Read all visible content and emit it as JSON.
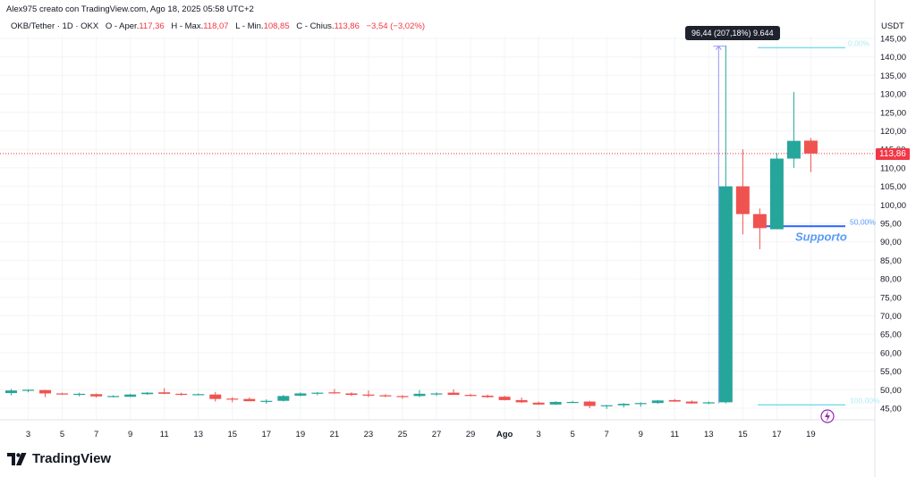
{
  "header": {
    "credit": "Alex975 creato con TradingView.com, Ago 18, 2025 05:58 UTC+2",
    "symbol": "OKB/Tether · 1D · OKX",
    "open_label": "O - Aper.",
    "open": "117,36",
    "high_label": "H - Max.",
    "high": "118,07",
    "low_label": "L - Min.",
    "low": "108,85",
    "close_label": "C - Chius.",
    "close": "113,86",
    "change": "−3,54 (−3,02%)"
  },
  "axis": {
    "currency": "USDT",
    "last_price": "113,86"
  },
  "measure_tooltip": "96,44 (207,18%) 9.644",
  "annotations": {
    "fib_top_label": "0,00%",
    "fib_mid_label": "50,00%",
    "fib_bottom_label": "100,00%",
    "support_label": "Supporto"
  },
  "branding": {
    "logo_text": "TradingView"
  },
  "colors": {
    "up": "#26a69a",
    "down": "#ef5350",
    "support": "#2962ff",
    "fib": "#80deea",
    "measure": "#9598f7"
  },
  "chart_data": {
    "type": "candlestick",
    "title": "OKB/Tether · 1D · OKX",
    "xlabel": "",
    "ylabel": "USDT",
    "ylim": [
      42,
      147
    ],
    "y_ticks": [
      "45,00",
      "50,00",
      "55,00",
      "60,00",
      "65,00",
      "70,00",
      "75,00",
      "80,00",
      "85,00",
      "90,00",
      "95,00",
      "100,00",
      "105,00",
      "110,00",
      "115,00",
      "120,00",
      "125,00",
      "130,00",
      "135,00",
      "140,00",
      "145,00"
    ],
    "x_ticks": [
      "3",
      "5",
      "7",
      "9",
      "11",
      "13",
      "15",
      "17",
      "19",
      "21",
      "23",
      "25",
      "27",
      "29",
      "Ago",
      "3",
      "5",
      "7",
      "9",
      "11",
      "13",
      "15",
      "17",
      "19"
    ],
    "grid": true,
    "candles": [
      {
        "date": "Jul 2",
        "o": 49.1,
        "h": 50.2,
        "l": 48.5,
        "c": 49.8
      },
      {
        "date": "Jul 3",
        "o": 49.7,
        "h": 50.1,
        "l": 49.3,
        "c": 50.0
      },
      {
        "date": "Jul 4",
        "o": 49.9,
        "h": 50.0,
        "l": 48.0,
        "c": 49.0
      },
      {
        "date": "Jul 5",
        "o": 49.0,
        "h": 49.2,
        "l": 48.6,
        "c": 48.7
      },
      {
        "date": "Jul 6",
        "o": 48.7,
        "h": 49.2,
        "l": 48.2,
        "c": 48.9
      },
      {
        "date": "Jul 7",
        "o": 48.8,
        "h": 49.0,
        "l": 47.9,
        "c": 48.2
      },
      {
        "date": "Jul 8",
        "o": 48.2,
        "h": 48.5,
        "l": 47.9,
        "c": 48.3
      },
      {
        "date": "Jul 9",
        "o": 48.1,
        "h": 48.9,
        "l": 48.0,
        "c": 48.7
      },
      {
        "date": "Jul 10",
        "o": 48.8,
        "h": 49.4,
        "l": 48.6,
        "c": 49.2
      },
      {
        "date": "Jul 11",
        "o": 49.3,
        "h": 50.4,
        "l": 48.8,
        "c": 48.9
      },
      {
        "date": "Jul 12",
        "o": 48.9,
        "h": 49.2,
        "l": 48.4,
        "c": 48.7
      },
      {
        "date": "Jul 13",
        "o": 48.7,
        "h": 49.0,
        "l": 48.5,
        "c": 48.8
      },
      {
        "date": "Jul 14",
        "o": 48.7,
        "h": 49.4,
        "l": 46.8,
        "c": 47.5
      },
      {
        "date": "Jul 15",
        "o": 47.6,
        "h": 48.0,
        "l": 46.6,
        "c": 47.4
      },
      {
        "date": "Jul 16",
        "o": 47.5,
        "h": 47.9,
        "l": 46.9,
        "c": 46.9
      },
      {
        "date": "Jul 17",
        "o": 46.9,
        "h": 47.4,
        "l": 46.2,
        "c": 47.0
      },
      {
        "date": "Jul 18",
        "o": 47.0,
        "h": 48.6,
        "l": 46.8,
        "c": 48.3
      },
      {
        "date": "Jul 19",
        "o": 48.4,
        "h": 49.3,
        "l": 48.2,
        "c": 49.0
      },
      {
        "date": "Jul 20",
        "o": 49.1,
        "h": 49.4,
        "l": 48.5,
        "c": 49.2
      },
      {
        "date": "Jul 21",
        "o": 49.3,
        "h": 50.2,
        "l": 48.9,
        "c": 49.0
      },
      {
        "date": "Jul 22",
        "o": 49.0,
        "h": 49.3,
        "l": 48.3,
        "c": 48.6
      },
      {
        "date": "Jul 23",
        "o": 48.7,
        "h": 49.8,
        "l": 48.0,
        "c": 48.4
      },
      {
        "date": "Jul 24",
        "o": 48.5,
        "h": 48.8,
        "l": 48.0,
        "c": 48.2
      },
      {
        "date": "Jul 25",
        "o": 48.3,
        "h": 48.5,
        "l": 47.5,
        "c": 48.2
      },
      {
        "date": "Jul 26",
        "o": 48.3,
        "h": 49.9,
        "l": 48.0,
        "c": 48.9
      },
      {
        "date": "Jul 27",
        "o": 48.8,
        "h": 49.3,
        "l": 48.3,
        "c": 49.0
      },
      {
        "date": "Jul 28",
        "o": 49.2,
        "h": 50.1,
        "l": 48.8,
        "c": 48.6
      },
      {
        "date": "Jul 29",
        "o": 48.6,
        "h": 48.9,
        "l": 48.2,
        "c": 48.4
      },
      {
        "date": "Jul 30",
        "o": 48.4,
        "h": 48.7,
        "l": 47.8,
        "c": 48.0
      },
      {
        "date": "Jul 31",
        "o": 48.1,
        "h": 48.4,
        "l": 47.1,
        "c": 47.2
      },
      {
        "date": "Aug 1",
        "o": 47.2,
        "h": 47.9,
        "l": 46.4,
        "c": 46.6
      },
      {
        "date": "Aug 2",
        "o": 46.5,
        "h": 46.8,
        "l": 45.9,
        "c": 46.0
      },
      {
        "date": "Aug 3",
        "o": 46.0,
        "h": 46.9,
        "l": 45.9,
        "c": 46.7
      },
      {
        "date": "Aug 4",
        "o": 46.6,
        "h": 47.0,
        "l": 46.4,
        "c": 46.7
      },
      {
        "date": "Aug 5",
        "o": 46.8,
        "h": 47.0,
        "l": 45.0,
        "c": 45.6
      },
      {
        "date": "Aug 6",
        "o": 45.6,
        "h": 45.9,
        "l": 44.8,
        "c": 45.8
      },
      {
        "date": "Aug 7",
        "o": 45.8,
        "h": 46.4,
        "l": 45.2,
        "c": 46.2
      },
      {
        "date": "Aug 8",
        "o": 46.2,
        "h": 46.6,
        "l": 45.4,
        "c": 46.4
      },
      {
        "date": "Aug 9",
        "o": 46.4,
        "h": 47.2,
        "l": 46.2,
        "c": 47.1
      },
      {
        "date": "Aug 10",
        "o": 47.2,
        "h": 47.5,
        "l": 46.7,
        "c": 46.8
      },
      {
        "date": "Aug 11",
        "o": 46.8,
        "h": 47.1,
        "l": 46.2,
        "c": 46.3
      },
      {
        "date": "Aug 12",
        "o": 46.3,
        "h": 46.8,
        "l": 46.1,
        "c": 46.6
      },
      {
        "date": "Aug 13",
        "o": 46.6,
        "h": 142.9,
        "l": 46.3,
        "c": 105.0
      },
      {
        "date": "Aug 14",
        "o": 105.0,
        "h": 115.0,
        "l": 92.0,
        "c": 97.5
      },
      {
        "date": "Aug 15",
        "o": 97.5,
        "h": 99.0,
        "l": 88.0,
        "c": 93.7
      },
      {
        "date": "Aug 16",
        "o": 93.4,
        "h": 114.0,
        "l": 93.4,
        "c": 112.5
      },
      {
        "date": "Aug 17",
        "o": 112.5,
        "h": 130.5,
        "l": 110.0,
        "c": 117.3
      },
      {
        "date": "Aug 18",
        "o": 117.36,
        "h": 118.07,
        "l": 108.85,
        "c": 113.86
      }
    ],
    "annotations": [
      {
        "type": "fib_level",
        "label": "0,00%",
        "price": 142.5
      },
      {
        "type": "fib_level",
        "label": "50,00%",
        "price": 94.2
      },
      {
        "type": "fib_level",
        "label": "100,00%",
        "price": 45.9
      },
      {
        "type": "text",
        "label": "Supporto",
        "price": 91.5
      },
      {
        "type": "price_range",
        "label": "96,44 (207,18%) 9.644"
      },
      {
        "type": "last_price",
        "label": "113,86",
        "price": 113.86
      }
    ]
  }
}
